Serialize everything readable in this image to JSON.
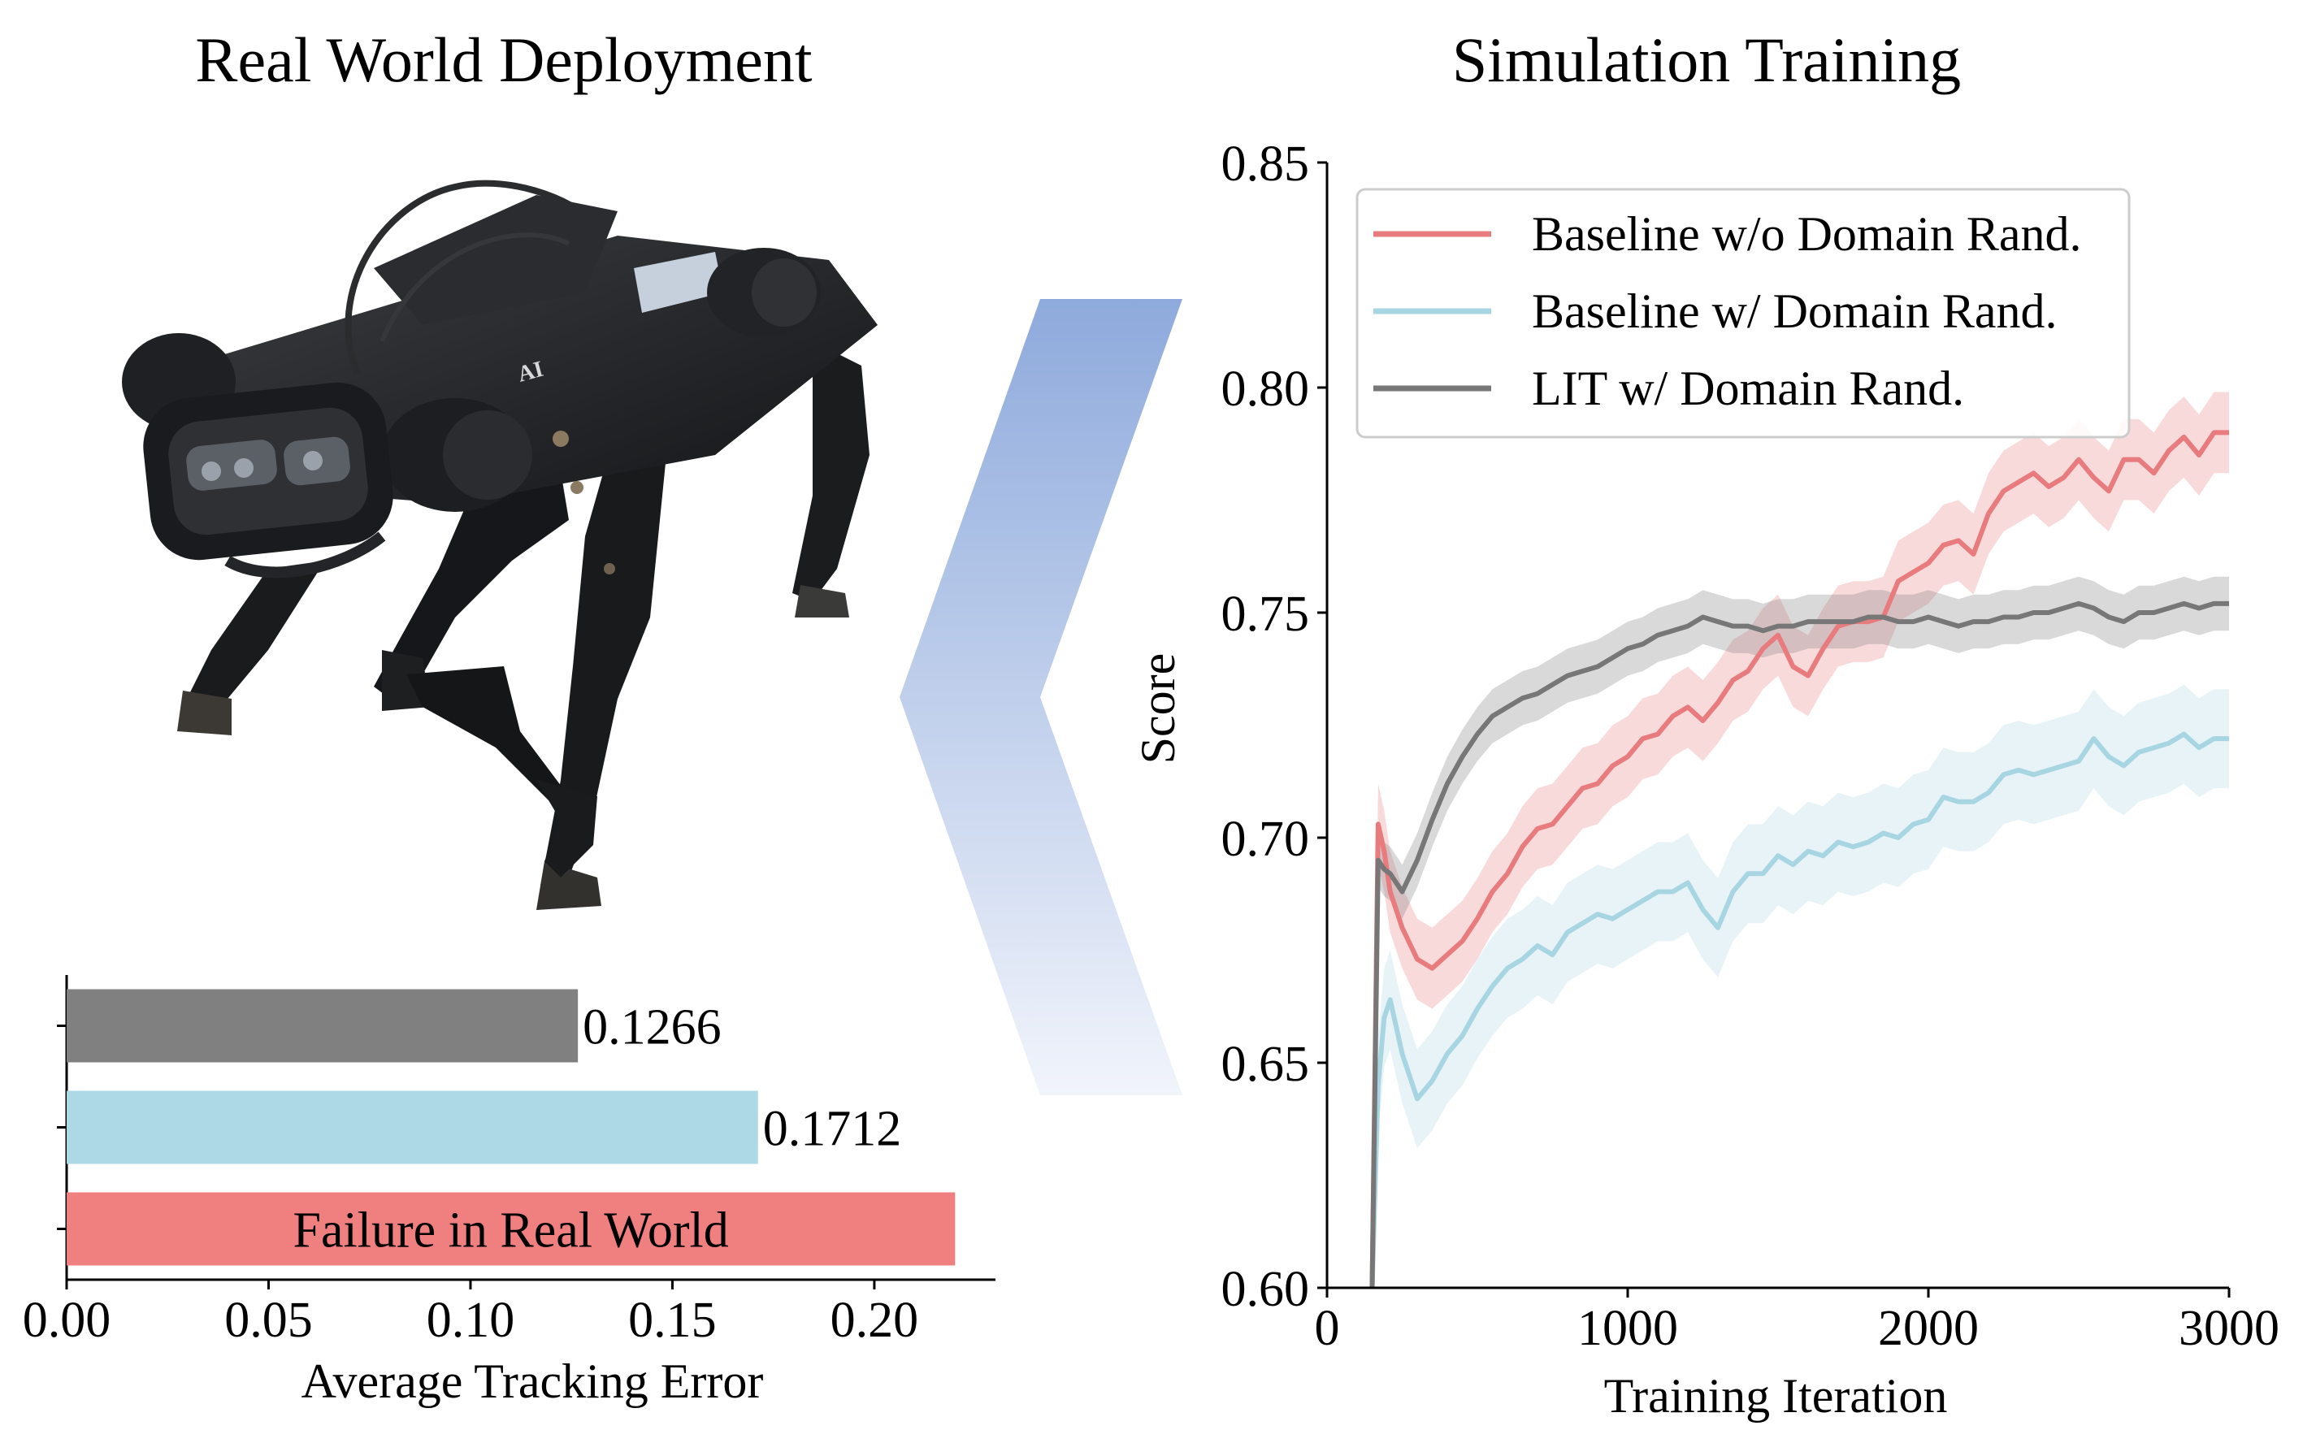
{
  "left_panel": {
    "title": "Real World Deployment",
    "robot_badge": "AI"
  },
  "right_panel": {
    "title": "Simulation Training"
  },
  "chart_data": [
    {
      "type": "bar",
      "orientation": "horizontal",
      "title": "",
      "xlabel": "Average Tracking Error",
      "ylabel": "",
      "xlim": [
        0,
        0.23
      ],
      "xticks": [
        "0.00",
        "0.05",
        "0.10",
        "0.15",
        "0.20"
      ],
      "bars": [
        {
          "value": 0.1266,
          "label": "0.1266",
          "color": "#808080"
        },
        {
          "value": 0.1712,
          "label": "0.1712",
          "color": "#add8e6"
        },
        {
          "value": 0.22,
          "label": "Failure in Real World",
          "color": "#f08080"
        }
      ]
    },
    {
      "type": "line",
      "title": "",
      "xlabel": "Training Iteration",
      "ylabel": "Score",
      "xlim": [
        0,
        3000
      ],
      "ylim": [
        0.6,
        0.85
      ],
      "xticks": [
        "0",
        "1000",
        "2000",
        "3000"
      ],
      "yticks": [
        "0.60",
        "0.65",
        "0.70",
        "0.75",
        "0.80",
        "0.85"
      ],
      "grid": false,
      "legend_position": "top-left",
      "series": [
        {
          "name": "Baseline w/o Domain Rand.",
          "color": "#e87b7e",
          "band": 0.009,
          "x": [
            150,
            170,
            190,
            210,
            250,
            300,
            350,
            400,
            450,
            500,
            550,
            600,
            650,
            700,
            750,
            800,
            850,
            900,
            950,
            1000,
            1050,
            1100,
            1150,
            1200,
            1250,
            1300,
            1350,
            1400,
            1450,
            1500,
            1550,
            1600,
            1650,
            1700,
            1750,
            1800,
            1850,
            1900,
            1950,
            2000,
            2050,
            2100,
            2150,
            2200,
            2250,
            2300,
            2350,
            2400,
            2450,
            2500,
            2550,
            2600,
            2650,
            2700,
            2750,
            2800,
            2850,
            2900,
            2950,
            3000
          ],
          "y": [
            0.6,
            0.703,
            0.697,
            0.688,
            0.68,
            0.673,
            0.671,
            0.674,
            0.677,
            0.682,
            0.688,
            0.692,
            0.698,
            0.702,
            0.703,
            0.707,
            0.711,
            0.712,
            0.716,
            0.718,
            0.722,
            0.723,
            0.727,
            0.729,
            0.726,
            0.73,
            0.735,
            0.737,
            0.742,
            0.745,
            0.738,
            0.736,
            0.742,
            0.747,
            0.748,
            0.748,
            0.749,
            0.757,
            0.759,
            0.761,
            0.765,
            0.766,
            0.763,
            0.772,
            0.777,
            0.779,
            0.781,
            0.778,
            0.78,
            0.784,
            0.78,
            0.777,
            0.784,
            0.784,
            0.781,
            0.786,
            0.789,
            0.785,
            0.79,
            0.79
          ]
        },
        {
          "name": "Baseline w/ Domain Rand.",
          "color": "#a8d5e2",
          "band": 0.011,
          "x": [
            150,
            170,
            190,
            210,
            250,
            300,
            350,
            400,
            450,
            500,
            550,
            600,
            650,
            700,
            750,
            800,
            850,
            900,
            950,
            1000,
            1050,
            1100,
            1150,
            1200,
            1250,
            1300,
            1350,
            1400,
            1450,
            1500,
            1550,
            1600,
            1650,
            1700,
            1750,
            1800,
            1850,
            1900,
            1950,
            2000,
            2050,
            2100,
            2150,
            2200,
            2250,
            2300,
            2350,
            2400,
            2450,
            2500,
            2550,
            2600,
            2650,
            2700,
            2750,
            2800,
            2850,
            2900,
            2950,
            3000
          ],
          "y": [
            0.6,
            0.645,
            0.66,
            0.664,
            0.652,
            0.642,
            0.646,
            0.652,
            0.656,
            0.662,
            0.667,
            0.671,
            0.673,
            0.676,
            0.674,
            0.679,
            0.681,
            0.683,
            0.682,
            0.684,
            0.686,
            0.688,
            0.688,
            0.69,
            0.684,
            0.68,
            0.688,
            0.692,
            0.692,
            0.696,
            0.694,
            0.697,
            0.696,
            0.699,
            0.698,
            0.699,
            0.701,
            0.7,
            0.703,
            0.704,
            0.709,
            0.708,
            0.708,
            0.71,
            0.714,
            0.715,
            0.714,
            0.715,
            0.716,
            0.717,
            0.722,
            0.718,
            0.716,
            0.719,
            0.72,
            0.721,
            0.723,
            0.72,
            0.722,
            0.722
          ]
        },
        {
          "name": "LIT w/ Domain Rand.",
          "color": "#777777",
          "band": 0.006,
          "x": [
            150,
            170,
            190,
            210,
            250,
            300,
            350,
            400,
            450,
            500,
            550,
            600,
            650,
            700,
            750,
            800,
            850,
            900,
            950,
            1000,
            1050,
            1100,
            1150,
            1200,
            1250,
            1300,
            1350,
            1400,
            1450,
            1500,
            1550,
            1600,
            1650,
            1700,
            1750,
            1800,
            1850,
            1900,
            1950,
            2000,
            2050,
            2100,
            2150,
            2200,
            2250,
            2300,
            2350,
            2400,
            2450,
            2500,
            2550,
            2600,
            2650,
            2700,
            2750,
            2800,
            2850,
            2900,
            2950,
            3000
          ],
          "y": [
            0.6,
            0.695,
            0.693,
            0.692,
            0.688,
            0.695,
            0.704,
            0.712,
            0.718,
            0.723,
            0.727,
            0.729,
            0.731,
            0.732,
            0.734,
            0.736,
            0.737,
            0.738,
            0.74,
            0.742,
            0.743,
            0.745,
            0.746,
            0.747,
            0.749,
            0.748,
            0.747,
            0.747,
            0.746,
            0.747,
            0.747,
            0.748,
            0.748,
            0.748,
            0.748,
            0.749,
            0.749,
            0.748,
            0.748,
            0.749,
            0.748,
            0.747,
            0.748,
            0.748,
            0.749,
            0.749,
            0.75,
            0.75,
            0.751,
            0.752,
            0.751,
            0.749,
            0.748,
            0.75,
            0.75,
            0.751,
            0.752,
            0.751,
            0.752,
            0.752
          ]
        }
      ]
    }
  ]
}
